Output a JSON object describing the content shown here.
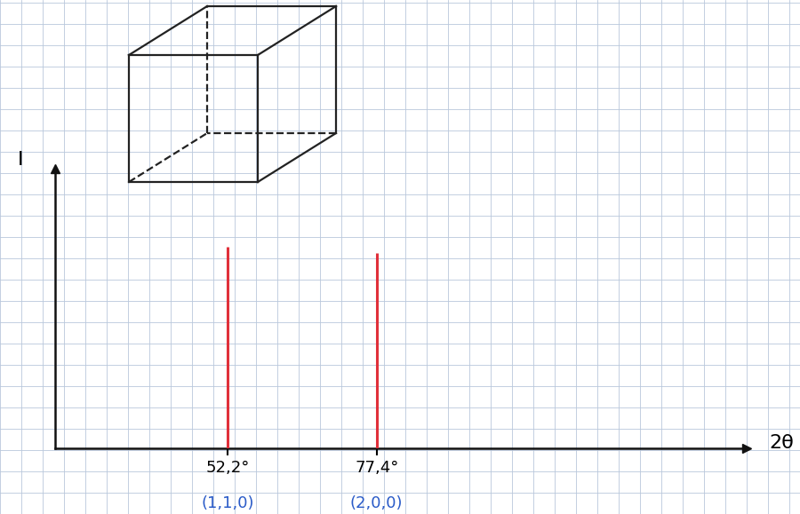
{
  "chart_data": {
    "type": "stem",
    "x_label": "2θ",
    "y_label": "I",
    "x": [
      52.2,
      77.4
    ],
    "values": [
      0.72,
      0.7
    ],
    "color": "#e0303a",
    "annotations": [
      {
        "x": 52.2,
        "text": "(1,1,0)"
      },
      {
        "x": 77.4,
        "text": "(2,0,0)"
      }
    ],
    "xlim": [
      23,
      140
    ],
    "xticks": [
      {
        "value": 52.2,
        "label": "52,2°"
      },
      {
        "value": 77.4,
        "label": "77,4°"
      }
    ],
    "ylim": [
      0,
      1
    ],
    "yticks": [],
    "tick_labels": "x",
    "grid": false
  }
}
